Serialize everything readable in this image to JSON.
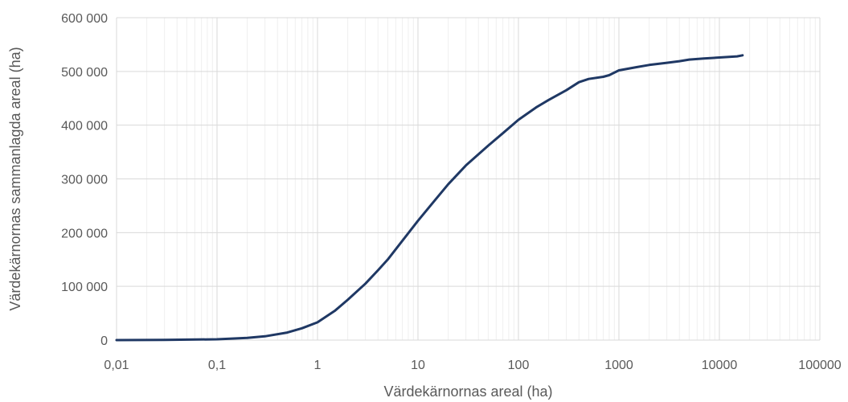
{
  "chart_data": {
    "type": "line",
    "title": "",
    "xlabel": "Värdekärnornas areal (ha)",
    "ylabel": "Värdekärnornas sammanlagda areal (ha)",
    "x_scale": "log",
    "xlim": [
      0.01,
      100000
    ],
    "ylim": [
      0,
      600000
    ],
    "x_tick_values": [
      0.01,
      0.1,
      1,
      10,
      100,
      1000,
      10000,
      100000
    ],
    "x_tick_labels": [
      "0,01",
      "0,1",
      "1",
      "10",
      "100",
      "1000",
      "10000",
      "100000"
    ],
    "y_tick_values": [
      0,
      100000,
      200000,
      300000,
      400000,
      500000,
      600000
    ],
    "y_tick_labels": [
      "0",
      "100 000",
      "200 000",
      "300 000",
      "400 000",
      "500 000",
      "600 000"
    ],
    "grid": true,
    "minor_grid": true,
    "legend": "none",
    "series": [
      {
        "color": "#1f3864",
        "x": [
          0.01,
          0.03,
          0.1,
          0.2,
          0.3,
          0.5,
          0.7,
          1,
          1.5,
          2,
          3,
          4,
          5,
          7,
          10,
          15,
          20,
          30,
          50,
          70,
          100,
          150,
          200,
          300,
          400,
          500,
          700,
          800,
          1000,
          1500,
          2000,
          3000,
          4000,
          5000,
          7000,
          10000,
          15000,
          17000
        ],
        "y": [
          0,
          300,
          1500,
          4000,
          7000,
          14000,
          22000,
          33000,
          55000,
          75000,
          105000,
          130000,
          150000,
          185000,
          222000,
          262000,
          290000,
          325000,
          362000,
          385000,
          410000,
          433000,
          447000,
          465000,
          480000,
          486000,
          490000,
          493000,
          502000,
          508000,
          512000,
          516000,
          519000,
          522000,
          524000,
          526000,
          528000,
          530000
        ]
      }
    ]
  }
}
